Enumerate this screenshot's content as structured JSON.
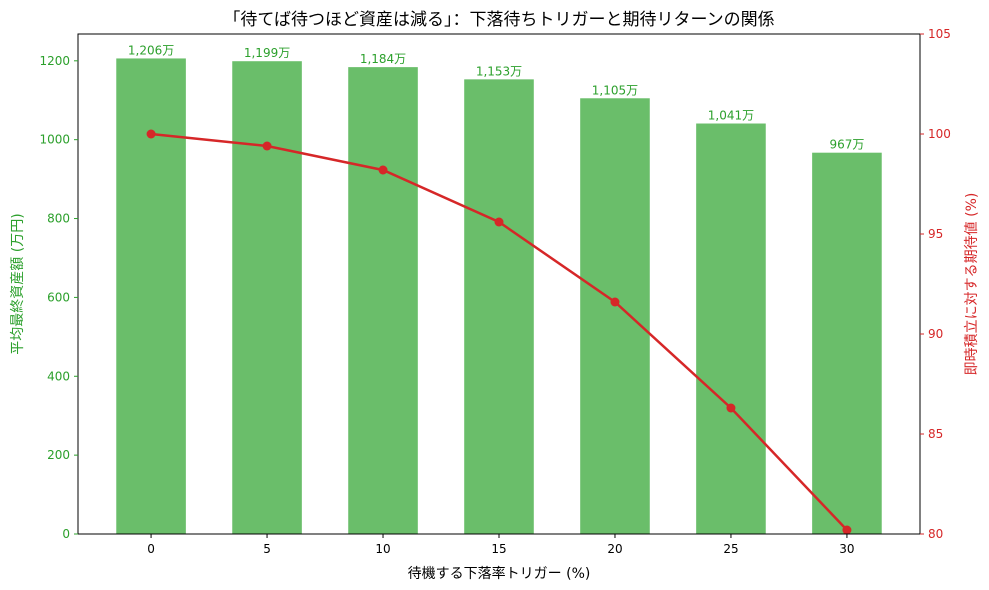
{
  "chart_data": {
    "type": "bar+line",
    "title": "「待てば待つほど資産は減る」：下落待ちトリガーと期待リターンの関係",
    "xlabel": "待機する下落率トリガー (%)",
    "ylabel_left": "平均最終資産額 (万円)",
    "ylabel_right": "即時積立に対する期待値 (%)",
    "categories": [
      0,
      5,
      10,
      15,
      20,
      25,
      30
    ],
    "bar_series": {
      "values": [
        1206,
        1199,
        1184,
        1153,
        1105,
        1041,
        967
      ],
      "labels": [
        "1,206万",
        "1,199万",
        "1,184万",
        "1,153万",
        "1,105万",
        "1,041万",
        "967万"
      ],
      "color": "#6abe6a"
    },
    "line_series": {
      "values": [
        100,
        99.4,
        98.2,
        95.6,
        91.6,
        86.3,
        80.2
      ],
      "color": "#d62728"
    },
    "xlim": [
      -3.15,
      33.15
    ],
    "ylim_left": [
      0,
      1268
    ],
    "ylim_right": [
      80,
      105
    ],
    "x_ticks": [
      "0",
      "5",
      "10",
      "15",
      "20",
      "25",
      "30"
    ],
    "left_ticks": [
      "0",
      "200",
      "400",
      "600",
      "800",
      "1000",
      "1200"
    ],
    "right_ticks": [
      "80",
      "85",
      "90",
      "95",
      "100",
      "105"
    ],
    "left_axis_color": "#2ca02c",
    "right_axis_color": "#d62728",
    "grid": false
  }
}
